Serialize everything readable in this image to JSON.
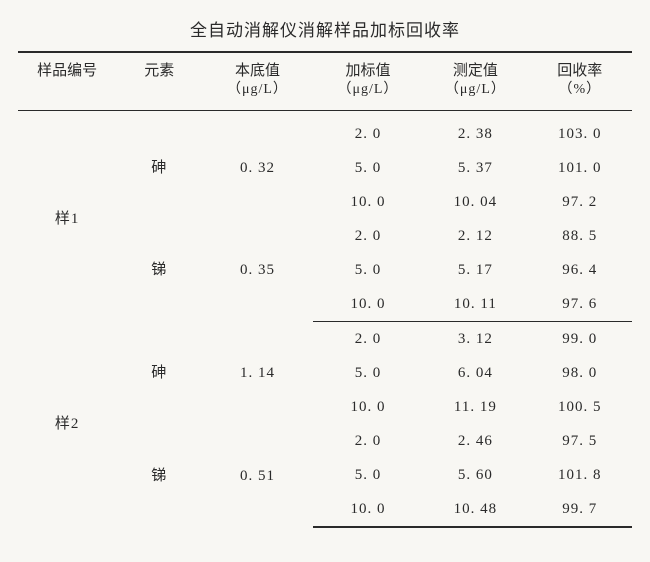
{
  "title": "全自动消解仪消解样品加标回收率",
  "table": {
    "type": "table",
    "background_color": "#f8f7f3",
    "text_color": "#2a2a2a",
    "rule_color": "#2a2a2a",
    "font_family": "SimSun",
    "title_fontsize": 17,
    "header_fontsize": 15,
    "body_fontsize": 15,
    "column_widths_pct": [
      16,
      14,
      18,
      18,
      17,
      17
    ],
    "columns": [
      {
        "key": "sample",
        "label": "样品编号",
        "unit": ""
      },
      {
        "key": "element",
        "label": "元素",
        "unit": ""
      },
      {
        "key": "base",
        "label": "本底值",
        "unit": "（μg/L）"
      },
      {
        "key": "spike",
        "label": "加标值",
        "unit": "（μg/L）"
      },
      {
        "key": "measured",
        "label": "测定值",
        "unit": "（μg/L）"
      },
      {
        "key": "recovery",
        "label": "回收率",
        "unit": "（%）"
      }
    ],
    "samples": [
      {
        "name": "样1",
        "elements": [
          {
            "name": "砷",
            "base": "0. 32",
            "rows": [
              {
                "spike": "2. 0",
                "measured": "2. 38",
                "recovery": "103. 0"
              },
              {
                "spike": "5. 0",
                "measured": "5. 37",
                "recovery": "101. 0"
              },
              {
                "spike": "10. 0",
                "measured": "10. 04",
                "recovery": "97. 2"
              }
            ]
          },
          {
            "name": "锑",
            "base": "0. 35",
            "rows": [
              {
                "spike": "2. 0",
                "measured": "2. 12",
                "recovery": "88. 5"
              },
              {
                "spike": "5. 0",
                "measured": "5. 17",
                "recovery": "96. 4"
              },
              {
                "spike": "10. 0",
                "measured": "10. 11",
                "recovery": "97. 6"
              }
            ]
          }
        ]
      },
      {
        "name": "样2",
        "elements": [
          {
            "name": "砷",
            "base": "1. 14",
            "rows": [
              {
                "spike": "2. 0",
                "measured": "3. 12",
                "recovery": "99. 0"
              },
              {
                "spike": "5. 0",
                "measured": "6. 04",
                "recovery": "98. 0"
              },
              {
                "spike": "10. 0",
                "measured": "11. 19",
                "recovery": "100. 5"
              }
            ]
          },
          {
            "name": "锑",
            "base": "0. 51",
            "rows": [
              {
                "spike": "2. 0",
                "measured": "2. 46",
                "recovery": "97. 5"
              },
              {
                "spike": "5. 0",
                "measured": "5. 60",
                "recovery": "101. 8"
              },
              {
                "spike": "10. 0",
                "measured": "10. 48",
                "recovery": "99. 7"
              }
            ]
          }
        ]
      }
    ]
  }
}
